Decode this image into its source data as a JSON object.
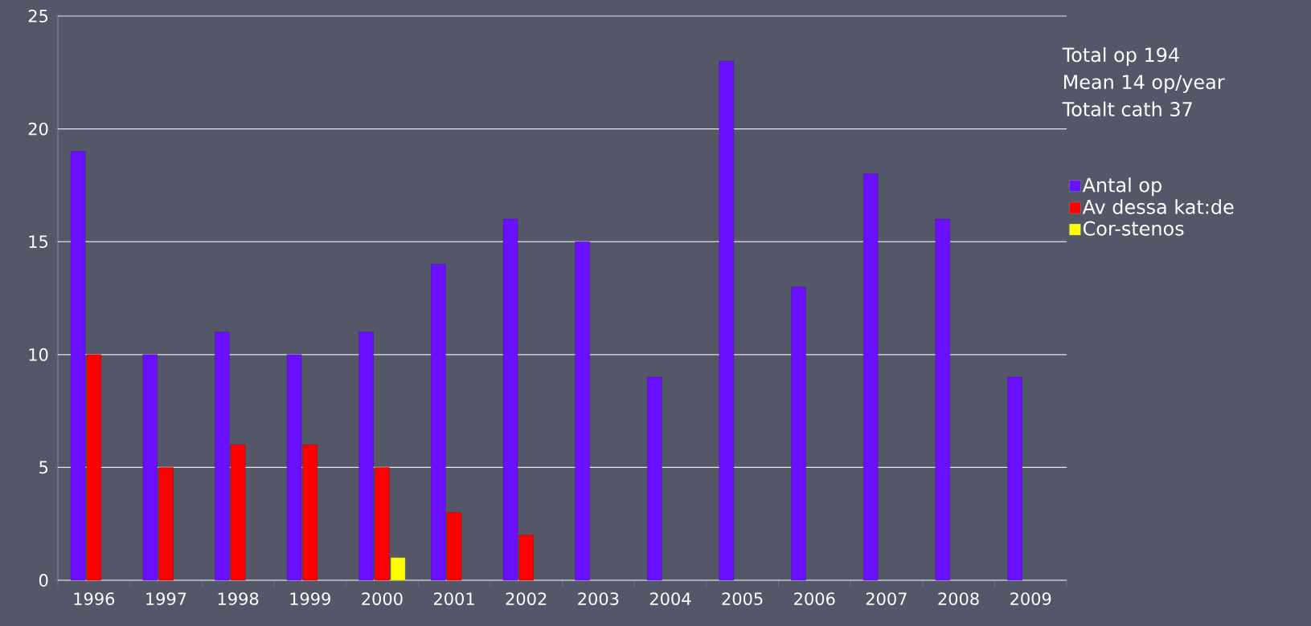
{
  "chart_data": {
    "type": "bar",
    "categories": [
      "1996",
      "1997",
      "1998",
      "1999",
      "2000",
      "2001",
      "2002",
      "2003",
      "2004",
      "2005",
      "2006",
      "2007",
      "2008",
      "2009"
    ],
    "series": [
      {
        "name": "Antal op",
        "color": "#6a10ff",
        "values": [
          19,
          10,
          11,
          10,
          11,
          14,
          16,
          15,
          9,
          23,
          13,
          18,
          16,
          9
        ]
      },
      {
        "name": "Av dessa kat:de",
        "color": "#ff0000",
        "values": [
          10,
          5,
          6,
          6,
          5,
          3,
          2,
          null,
          null,
          null,
          null,
          null,
          null,
          null
        ]
      },
      {
        "name": "Cor-stenos",
        "color": "#ffff00",
        "values": [
          null,
          null,
          null,
          null,
          1,
          null,
          null,
          null,
          null,
          null,
          null,
          null,
          null,
          null
        ]
      }
    ],
    "ylim": [
      0,
      25
    ],
    "yticks": [
      0,
      5,
      10,
      15,
      20,
      25
    ],
    "grid": "y",
    "legend": "right",
    "annotations": [
      "Total op 194",
      "Mean 14 op/year",
      "Totalt cath 37"
    ]
  }
}
